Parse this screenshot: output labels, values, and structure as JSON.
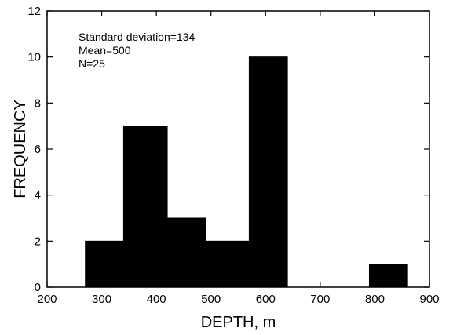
{
  "chart_data": {
    "type": "bar",
    "title": "",
    "xlabel": "DEPTH, m",
    "ylabel": "FREQUENCY",
    "xlim": [
      200,
      900
    ],
    "ylim": [
      0,
      12
    ],
    "x_ticks": [
      200,
      300,
      400,
      500,
      600,
      700,
      800,
      900
    ],
    "x_tick_labels": [
      "200",
      "300",
      "400",
      "500",
      "600",
      "700",
      "800",
      "900"
    ],
    "y_ticks": [
      0,
      2,
      4,
      6,
      8,
      10,
      12
    ],
    "y_tick_labels": [
      "0",
      "2",
      "4",
      "6",
      "8",
      "10",
      "12"
    ],
    "bins": [
      {
        "start": 270,
        "end": 340,
        "value": 2
      },
      {
        "start": 340,
        "end": 420,
        "value": 7
      },
      {
        "start": 420,
        "end": 490,
        "value": 3
      },
      {
        "start": 490,
        "end": 570,
        "value": 2
      },
      {
        "start": 570,
        "end": 640,
        "value": 10
      },
      {
        "start": 640,
        "end": 710,
        "value": 0
      },
      {
        "start": 710,
        "end": 790,
        "value": 0
      },
      {
        "start": 790,
        "end": 860,
        "value": 1
      }
    ],
    "annotations": [
      "Standard deviation=134",
      "Mean=500",
      "N=25"
    ],
    "grid": false,
    "bar_color": "#000000"
  }
}
